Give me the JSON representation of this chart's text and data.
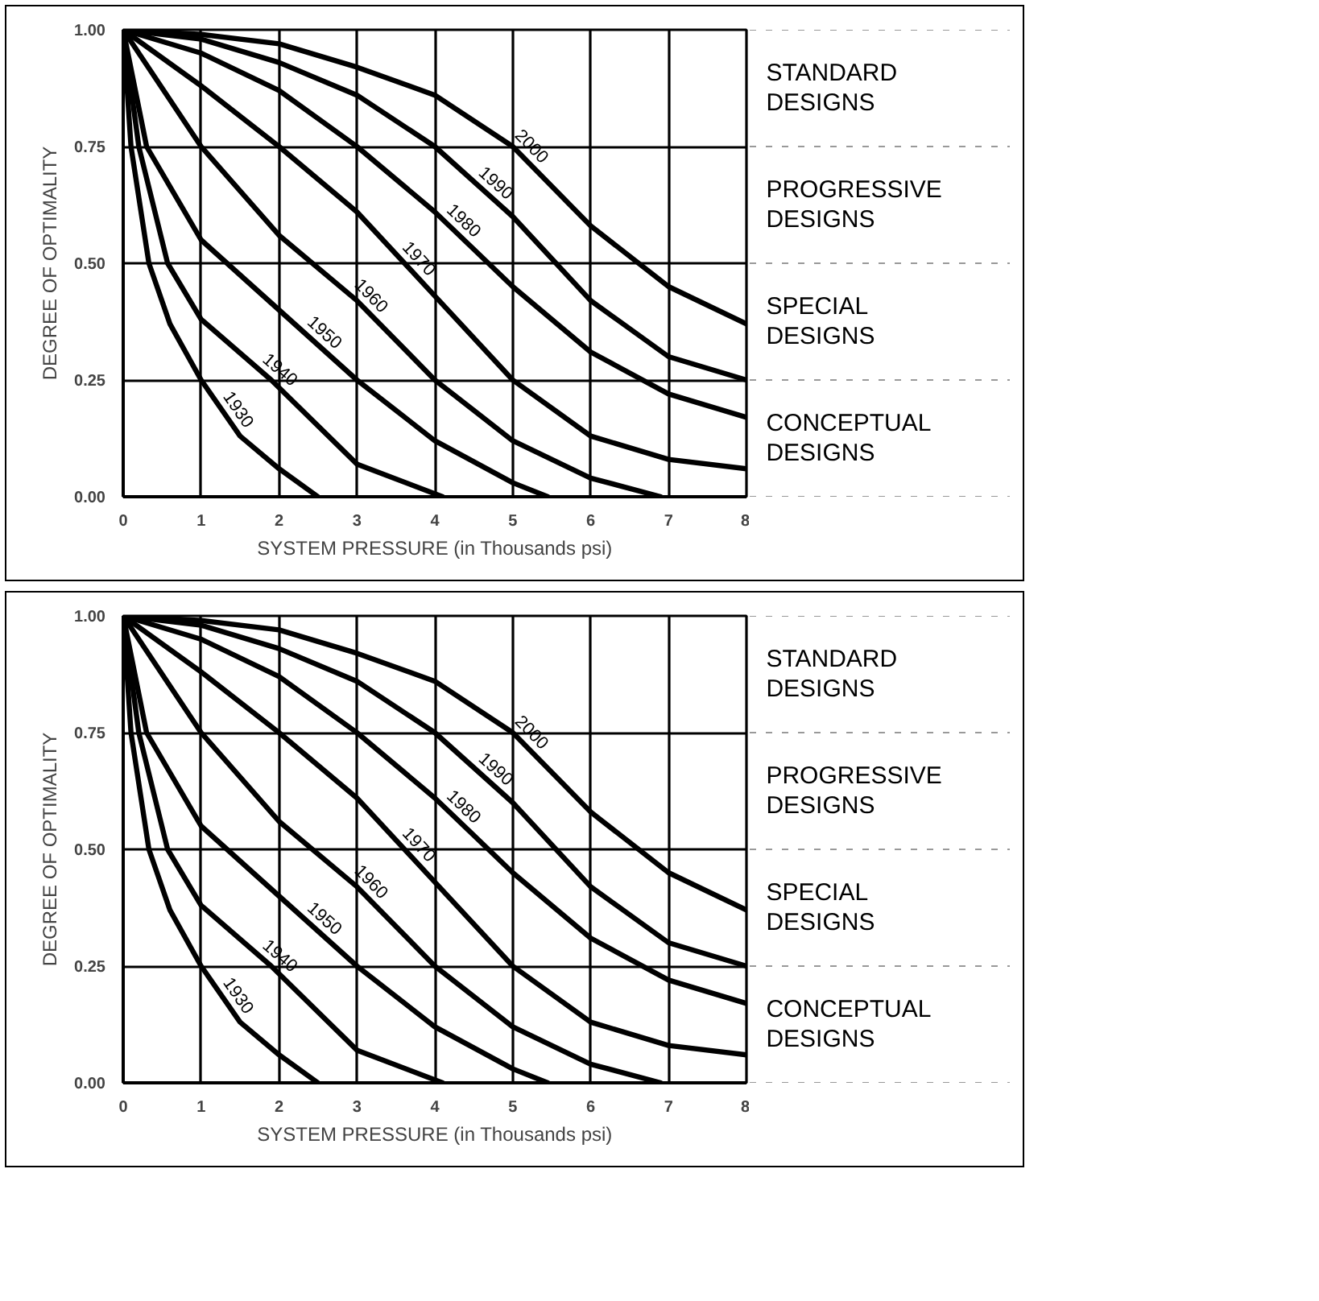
{
  "chart_data": [
    {
      "type": "line",
      "xlabel": "SYSTEM PRESSURE (in Thousands psi)",
      "ylabel": "DEGREE OF OPTIMALITY",
      "xlim": [
        0,
        8
      ],
      "ylim": [
        0,
        1
      ],
      "xticks": [
        0,
        1,
        2,
        3,
        4,
        5,
        6,
        7,
        8
      ],
      "yticks": [
        {
          "value": 0,
          "label": "0.00"
        },
        {
          "value": 0.25,
          "label": "0.25"
        },
        {
          "value": 0.5,
          "label": "0.50"
        },
        {
          "value": 0.75,
          "label": "0.75"
        },
        {
          "value": 1,
          "label": "1.00"
        }
      ],
      "grid": true,
      "series": [
        {
          "name": "1930",
          "color": "#000000",
          "x": [
            0,
            0.1,
            0.33,
            0.6,
            1,
            1.5,
            2,
            2.5
          ],
          "values": [
            1,
            0.75,
            0.5,
            0.37,
            0.25,
            0.13,
            0.06,
            0
          ]
        },
        {
          "name": "1940",
          "color": "#000000",
          "x": [
            0,
            0.2,
            0.57,
            1,
            1.9,
            3,
            4.1
          ],
          "values": [
            1,
            0.75,
            0.5,
            0.38,
            0.25,
            0.07,
            0
          ]
        },
        {
          "name": "1950",
          "color": "#000000",
          "x": [
            0,
            0.3,
            1,
            2,
            3,
            4,
            5,
            5.45
          ],
          "values": [
            1,
            0.75,
            0.55,
            0.4,
            0.25,
            0.12,
            0.03,
            0
          ]
        },
        {
          "name": "1960",
          "color": "#000000",
          "x": [
            0,
            1,
            2,
            3,
            4,
            5,
            6,
            6.9
          ],
          "values": [
            1,
            0.75,
            0.56,
            0.42,
            0.25,
            0.12,
            0.04,
            0
          ]
        },
        {
          "name": "1970",
          "color": "#000000",
          "x": [
            0,
            1,
            2,
            3,
            4,
            5,
            6,
            7,
            8
          ],
          "values": [
            1,
            0.88,
            0.75,
            0.61,
            0.43,
            0.25,
            0.13,
            0.08,
            0.06
          ]
        },
        {
          "name": "1980",
          "color": "#000000",
          "x": [
            0,
            1,
            2,
            3,
            4,
            5,
            6,
            7,
            8
          ],
          "values": [
            1,
            0.95,
            0.87,
            0.75,
            0.61,
            0.45,
            0.31,
            0.22,
            0.17
          ]
        },
        {
          "name": "1990",
          "color": "#000000",
          "x": [
            0,
            1,
            2,
            3,
            4,
            5,
            6,
            7,
            8
          ],
          "values": [
            1,
            0.98,
            0.93,
            0.86,
            0.75,
            0.6,
            0.42,
            0.3,
            0.25
          ]
        },
        {
          "name": "2000",
          "color": "#000000",
          "x": [
            0,
            1,
            2,
            3,
            4,
            5,
            6,
            7,
            8
          ],
          "values": [
            1,
            0.99,
            0.97,
            0.92,
            0.86,
            0.75,
            0.58,
            0.45,
            0.37
          ]
        }
      ],
      "annotations": [
        "STANDARD DESIGNS",
        "PROGRESSIVE DESIGNS",
        "SPECIAL DESIGNS",
        "CONCEPTUAL DESIGNS"
      ]
    },
    {
      "type": "line",
      "xlabel": "SYSTEM PRESSURE (in Thousands psi)",
      "ylabel": "DEGREE OF OPTIMALITY",
      "xlim": [
        0,
        8
      ],
      "ylim": [
        0,
        1
      ],
      "xticks": [
        0,
        1,
        2,
        3,
        4,
        5,
        6,
        7,
        8
      ],
      "yticks": [
        {
          "value": 0,
          "label": "0.00"
        },
        {
          "value": 0.25,
          "label": "0.25"
        },
        {
          "value": 0.5,
          "label": "0.50"
        },
        {
          "value": 0.75,
          "label": "0.75"
        },
        {
          "value": 1,
          "label": "1.00"
        }
      ],
      "grid": true,
      "series": [
        {
          "name": "1930",
          "color": "#000000",
          "x": [
            0,
            0.1,
            0.33,
            0.6,
            1,
            1.5,
            2,
            2.5
          ],
          "values": [
            1,
            0.75,
            0.5,
            0.37,
            0.25,
            0.13,
            0.06,
            0
          ]
        },
        {
          "name": "1940",
          "color": "#000000",
          "x": [
            0,
            0.2,
            0.57,
            1,
            1.9,
            3,
            4.1
          ],
          "values": [
            1,
            0.75,
            0.5,
            0.38,
            0.25,
            0.07,
            0
          ]
        },
        {
          "name": "1950",
          "color": "#000000",
          "x": [
            0,
            0.3,
            1,
            2,
            3,
            4,
            5,
            5.45
          ],
          "values": [
            1,
            0.75,
            0.55,
            0.4,
            0.25,
            0.12,
            0.03,
            0
          ]
        },
        {
          "name": "1960",
          "color": "#000000",
          "x": [
            0,
            1,
            2,
            3,
            4,
            5,
            6,
            6.9
          ],
          "values": [
            1,
            0.75,
            0.56,
            0.42,
            0.25,
            0.12,
            0.04,
            0
          ]
        },
        {
          "name": "1970",
          "color": "#000000",
          "x": [
            0,
            1,
            2,
            3,
            4,
            5,
            6,
            7,
            8
          ],
          "values": [
            1,
            0.88,
            0.75,
            0.61,
            0.43,
            0.25,
            0.13,
            0.08,
            0.06
          ]
        },
        {
          "name": "1980",
          "color": "#000000",
          "x": [
            0,
            1,
            2,
            3,
            4,
            5,
            6,
            7,
            8
          ],
          "values": [
            1,
            0.95,
            0.87,
            0.75,
            0.61,
            0.45,
            0.31,
            0.22,
            0.17
          ]
        },
        {
          "name": "1990",
          "color": "#000000",
          "x": [
            0,
            1,
            2,
            3,
            4,
            5,
            6,
            7,
            8
          ],
          "values": [
            1,
            0.98,
            0.93,
            0.86,
            0.75,
            0.6,
            0.42,
            0.3,
            0.25
          ]
        },
        {
          "name": "2000",
          "color": "#000000",
          "x": [
            0,
            1,
            2,
            3,
            4,
            5,
            6,
            7,
            8
          ],
          "values": [
            1,
            0.99,
            0.97,
            0.92,
            0.86,
            0.75,
            0.58,
            0.45,
            0.37
          ]
        }
      ],
      "annotations": [
        "STANDARD DESIGNS",
        "PROGRESSIVE DESIGNS",
        "SPECIAL DESIGNS",
        "CONCEPTUAL DESIGNS"
      ]
    }
  ]
}
